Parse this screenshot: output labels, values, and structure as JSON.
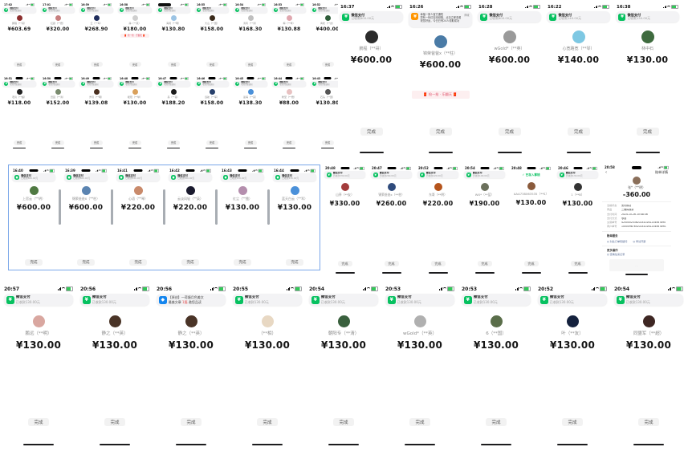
{
  "ui": {
    "banner_app": "微信支付",
    "banner_sub_generic": "收款到账通知",
    "button_label": "完成",
    "check_text": "✓ 已存入零钱",
    "decor_text": "🧧 抢一抢 · 乐翻天 🧧",
    "pay_icon_glyph": "¥",
    "blue_icon_glyph": "◆",
    "colors": {
      "wechat_green": "#07c160",
      "battery_green": "#34c759",
      "selection_blue": "#7aa7e9",
      "amount_black": "#141414",
      "link_blue": "#576b95",
      "decor_red": "#e0516a"
    }
  },
  "sections": {
    "mini_grid": {
      "rows": [
        {
          "items": [
            {
              "time": "17:02",
              "name": "鹏程（**哥）",
              "amount": "¥603.69",
              "avatar": "#8c2f2f"
            },
            {
              "time": "17:01",
              "name": "红颜（**霞）",
              "amount": "¥320.00",
              "avatar": "#c77f7f"
            },
            {
              "time": "16:59",
              "name": "云（**军）",
              "amount": "¥268.90",
              "avatar": "#1f2d5c"
            },
            {
              "time": "16:58",
              "name": "静（**英）",
              "amount": "¥180.00",
              "avatar": "#cfcfcf",
              "decor": true
            },
            {
              "time": "16:56",
              "name": "海阔（**明）",
              "amount": "¥130.80",
              "avatar": "#9cc4e4",
              "redact": true
            },
            {
              "time": "16:55",
              "name": "大山（**国）",
              "amount": "¥158.00",
              "avatar": "#3a2a1a"
            },
            {
              "time": "16:54",
              "name": "清风（**清）",
              "amount": "¥168.30",
              "avatar": "#bfbfbf"
            },
            {
              "time": "16:53",
              "name": "梅（**琴）",
              "amount": "¥130.88",
              "avatar": "#e0a8b0"
            },
            {
              "time": "16:52",
              "name": "青松（**友）",
              "amount": "¥400.00",
              "avatar": "#2f5d3a"
            }
          ]
        },
        {
          "items": [
            {
              "time": "16:51",
              "name": "老兵（**超）",
              "amount": "¥118.00",
              "avatar": "#222222"
            },
            {
              "time": "16:50",
              "name": "田园（**清）",
              "amount": "¥152.00",
              "avatar": "#7a8b6f"
            },
            {
              "time": "16:49",
              "name": "岁月（**明）",
              "amount": "¥139.08",
              "avatar": "#4a2f1f"
            },
            {
              "time": "16:48",
              "name": "暖阳（**琴）",
              "amount": "¥130.00",
              "avatar": "#d9a05b"
            },
            {
              "time": "16:47",
              "name": "墨（**哥）",
              "amount": "¥188.20",
              "avatar": "#1a1a1a"
            },
            {
              "time": "16:46",
              "name": "远航（**军）",
              "amount": "¥158.00",
              "avatar": "#27406b"
            },
            {
              "time": "16:45",
              "name": "蓝海（**英）",
              "amount": "¥138.30",
              "avatar": "#4a90d9"
            },
            {
              "time": "16:44",
              "name": "粉黛（**霞）",
              "amount": "¥88.00",
              "avatar": "#e8c2c2"
            },
            {
              "time": "16:43",
              "name": "石头（**国）",
              "amount": "¥130.80",
              "avatar": "#555555"
            }
          ]
        }
      ]
    },
    "top_right": {
      "items": [
        {
          "time": "16:37",
          "name": "鹏程（**哥）",
          "amount": "¥600.00",
          "avatar": "#2b2b2b",
          "sub": "已收款600.00元"
        },
        {
          "time": "16:26",
          "name": "锦荣爸爸x（**柱）",
          "amount": "¥600.00",
          "avatar": "#4a7ba6",
          "notif": "orange",
          "lines": [
            "幸福一家人官方通知",
            "您有一份红包待领取，点击立即查看",
            "祝您好运，今日已有24人领取成功"
          ],
          "thumb": "商城",
          "decor": true
        },
        {
          "time": "16:28",
          "name": "wGold*（**英）",
          "amount": "¥600.00",
          "avatar": "#9a9a9a",
          "sub": "已收款600.00元"
        },
        {
          "time": "16:22",
          "name": "心宽路宽（**琴）",
          "amount": "¥140.00",
          "avatar": "#7ec8e3",
          "sub": "已收款140.00元"
        },
        {
          "time": "16:38",
          "name": "林中石",
          "amount": "¥130.00",
          "avatar": "#3f6b3f",
          "sub": "已收款130.00元"
        }
      ]
    },
    "selection_box": {
      "items": [
        {
          "time": "16:40",
          "name": "上官云（**明）",
          "amount": "¥600.00",
          "avatar": "#4f7942",
          "sub": "已收款600.00元"
        },
        {
          "time": "16:39",
          "name": "锦荣爸爸x（**柱）",
          "amount": "¥600.00",
          "avatar": "#5b84b1",
          "sub": "已收款600.00元"
        },
        {
          "time": "16:41",
          "name": "心语（**琴）",
          "amount": "¥220.00",
          "avatar": "#c98a6b",
          "sub": "已收款220.00元"
        },
        {
          "time": "16:42",
          "name": "云淡风轻（**英）",
          "amount": "¥220.00",
          "avatar": "#1a1a2e",
          "sub": "已收款220.00元"
        },
        {
          "time": "16:43",
          "name": "红尘（**霞）",
          "amount": "¥130.00",
          "avatar": "#b48ead",
          "sub": "已收款130.00元"
        },
        {
          "time": "16:44",
          "name": "蓝天白云（**军）",
          "amount": "¥130.00",
          "avatar": "#4a90d9",
          "sub": "已收款130.00元"
        }
      ]
    },
    "mid_right": {
      "items": [
        {
          "time": "20:48",
          "name": "山亭（**友）",
          "amount": "¥330.00",
          "avatar": "#a33c3c",
          "sub": "已收款330.00元"
        },
        {
          "time": "20:47",
          "name": "锦荣爸爸x（**柱）",
          "amount": "¥260.00",
          "avatar": "#2f4b7c",
          "sub": "已收款260.00元"
        },
        {
          "time": "20:52",
          "name": "东哥（**明）",
          "amount": "¥220.00",
          "avatar": "#b5541c",
          "sub": "已收款220.00元"
        },
        {
          "time": "20:54",
          "name": "WX*（**蓝）",
          "amount": "¥190.00",
          "avatar": "#6b705c",
          "sub": "已收款190.00元"
        },
        {
          "time": "20:48",
          "name": "AAA738063535（**S）",
          "amount": "¥130.00",
          "avatar": "#8a5a3b",
          "notif": "check"
        },
        {
          "time": "20:46",
          "name": "1（**B）",
          "amount": "¥130.00",
          "avatar": "#333333",
          "sub": "已收款130.00元"
        }
      ],
      "detail": {
        "time": "20:58",
        "nav_back": "‹",
        "nav_right": "账单详情",
        "avatar": "#8a6f5a",
        "name": "张*（**明）",
        "amount": "-360.00",
        "rows": [
          [
            "当前状态",
            "支付成功"
          ],
          [
            "商品",
            "二维码收款"
          ],
          [
            "支付时间",
            "2024-10-26 20:48:36"
          ],
          [
            "支付方式",
            "零钱"
          ],
          [
            "交易单号",
            "4200002036202410261234567890"
          ],
          [
            "商户单号",
            "100009876520241026123456789012"
          ]
        ],
        "svc_title": "账单服务",
        "links": [
          "◎ 对此订单有疑问",
          "◎ 申请开票"
        ],
        "more_title": "更多操作",
        "more_link": "◎ 查看往来记录",
        "footer_hint": "· · ·"
      }
    },
    "bottom": {
      "items": [
        {
          "time": "20:57",
          "name": "鹏远（**明）",
          "amount": "¥130.00",
          "avatar": "#d9a7a0",
          "sub": "已收款130.00元"
        },
        {
          "time": "20:56",
          "name": "静之（**英）",
          "amount": "¥130.00",
          "avatar": "#4a3427",
          "sub": "已收款130.00元"
        },
        {
          "time": "20:56",
          "name": "静之（**英）",
          "amount": "¥130.00",
          "avatar": "#4a3427",
          "notif": "blue",
          "lines": [
            "【原创】—荷塘月色美文"
          ],
          "line2a": "最美文章 ",
          "line2red": "1篇",
          "line2b": " 邀您品读"
        },
        {
          "time": "20:55",
          "name": "（**相）",
          "amount": "¥130.00",
          "avatar": "#e8d8c3",
          "sub": "已收款130.00元"
        },
        {
          "time": "20:54",
          "name": "朝阳专（**清）",
          "amount": "¥130.00",
          "avatar": "#39603d",
          "sub": "已收款130.00元"
        },
        {
          "time": "20:53",
          "name": "wGold*（**英）",
          "amount": "¥130.00",
          "avatar": "#b0b0b0",
          "sub": "已收款130.00元"
        },
        {
          "time": "20:53",
          "name": "6（**国）",
          "amount": "¥130.00",
          "avatar": "#5a6e4a",
          "sub": "已收款130.00元"
        },
        {
          "time": "20:52",
          "name": "叶（**友）",
          "amount": "¥130.00",
          "avatar": "#14213d",
          "sub": "已收款130.00元"
        },
        {
          "time": "20:54",
          "name": "同盟军（**超）",
          "amount": "¥130.00",
          "avatar": "#3e2723",
          "sub": "已收款130.00元"
        }
      ]
    }
  }
}
